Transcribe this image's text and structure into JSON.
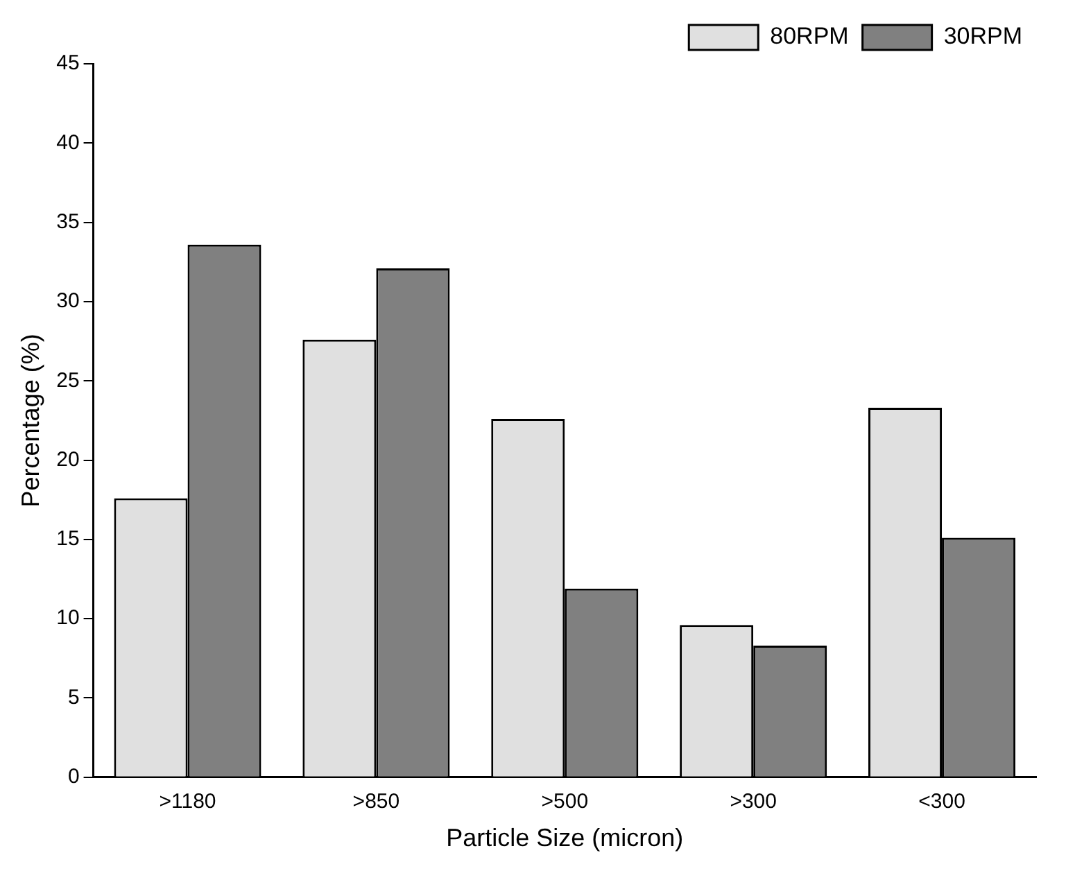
{
  "chart_data": {
    "type": "bar",
    "xlabel": "Particle Size (micron)",
    "ylabel": "Percentage (%)",
    "categories": [
      ">1180",
      ">850",
      ">500",
      ">300",
      "<300"
    ],
    "series": [
      {
        "name": "80RPM",
        "color": "#e0e0e0",
        "values": [
          17.6,
          27.6,
          22.6,
          9.6,
          23.3
        ]
      },
      {
        "name": "30RPM",
        "color": "#808080",
        "values": [
          33.6,
          32.1,
          11.9,
          8.3,
          15.1
        ]
      }
    ],
    "ylim": [
      0,
      45
    ],
    "yticks": [
      0,
      5,
      10,
      15,
      20,
      25,
      30,
      35,
      40,
      45
    ],
    "grid": false,
    "legend": "top right"
  }
}
